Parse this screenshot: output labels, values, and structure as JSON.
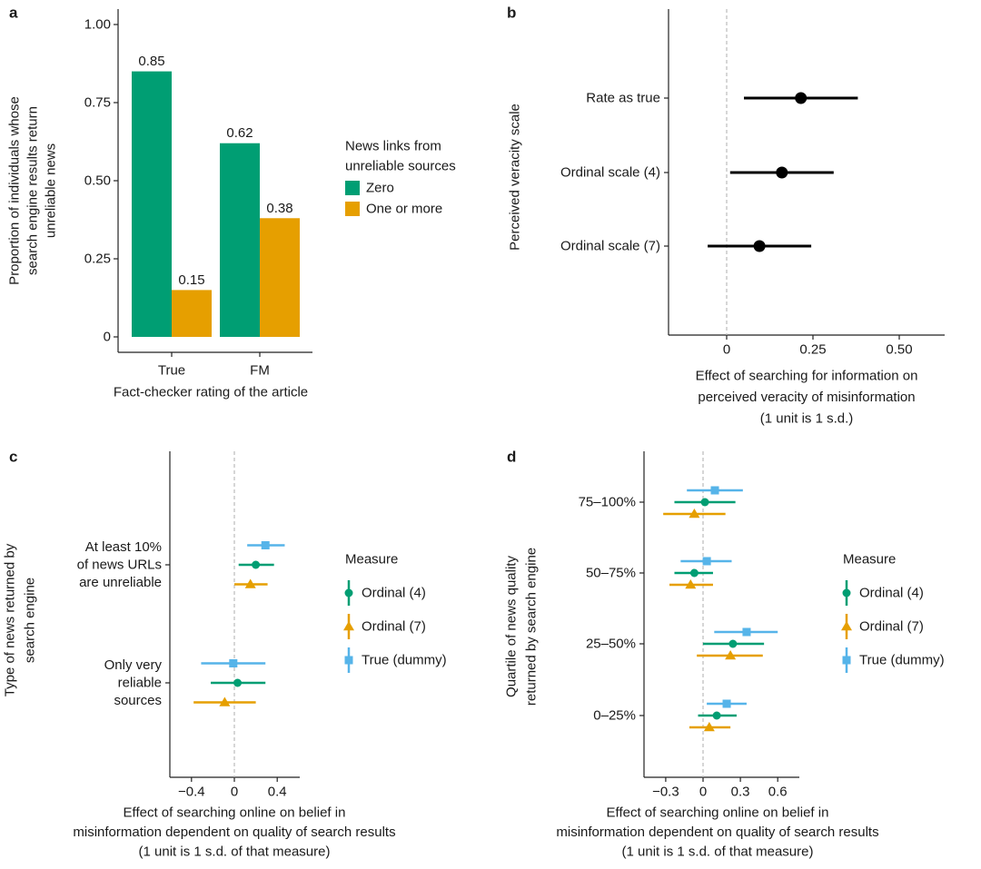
{
  "colors": {
    "green": "#009E73",
    "orange": "#E69F00",
    "blue": "#56B4E9",
    "black": "#000000"
  },
  "chart_data": [
    {
      "panel": "a",
      "type": "bar",
      "categories": [
        "True",
        "FM"
      ],
      "series": [
        {
          "name": "Zero",
          "values": [
            0.85,
            0.62
          ],
          "color": "#009E73"
        },
        {
          "name": "One or more",
          "values": [
            0.15,
            0.38
          ],
          "color": "#E69F00"
        }
      ],
      "data_labels": [
        [
          "0.85",
          "0.62"
        ],
        [
          "0.15",
          "0.38"
        ]
      ],
      "xlabel": "Fact-checker rating of the article",
      "ylabel": [
        "Proportion of individuals whose",
        "search engine results return",
        "unreliable news"
      ],
      "yticks": [
        "0",
        "0.25",
        "0.50",
        "0.75",
        "1.00"
      ],
      "ylim": [
        0,
        1
      ],
      "legend_title": [
        "News links from",
        "unreliable sources"
      ],
      "legend_position": "right",
      "grid": false
    },
    {
      "panel": "b",
      "type": "scatter",
      "subtype": "point-range",
      "categories": [
        "Rate as true",
        "Ordinal scale (4)",
        "Ordinal scale (7)"
      ],
      "estimates": [
        0.215,
        0.16,
        0.095
      ],
      "ci_low": [
        0.05,
        0.01,
        -0.055
      ],
      "ci_high": [
        0.38,
        0.31,
        0.245
      ],
      "xticks": [
        "0",
        "0.25",
        "0.50"
      ],
      "xlim": [
        -0.17,
        0.63
      ],
      "xlabel": [
        "Effect of searching for information on",
        "perceived veracity of misinformation",
        "(1 unit is 1 s.d.)"
      ],
      "ylabel": "Perceived veracity scale",
      "reference_line": 0,
      "grid": false
    },
    {
      "panel": "c",
      "type": "scatter",
      "subtype": "point-range",
      "categories": [
        [
          "At least 10%",
          "of news URLs",
          "are unreliable"
        ],
        [
          "Only very",
          "reliable",
          "sources"
        ]
      ],
      "series": [
        {
          "name": "True (dummy)",
          "marker": "square",
          "color": "#56B4E9",
          "estimates": [
            0.29,
            -0.01
          ],
          "ci_low": [
            0.12,
            -0.31
          ],
          "ci_high": [
            0.47,
            0.29
          ]
        },
        {
          "name": "Ordinal (4)",
          "marker": "circle",
          "color": "#009E73",
          "estimates": [
            0.2,
            0.03
          ],
          "ci_low": [
            0.04,
            -0.22
          ],
          "ci_high": [
            0.37,
            0.29
          ]
        },
        {
          "name": "Ordinal (7)",
          "marker": "triangle",
          "color": "#E69F00",
          "estimates": [
            0.15,
            -0.09
          ],
          "ci_low": [
            0.0,
            -0.38
          ],
          "ci_high": [
            0.31,
            0.2
          ]
        }
      ],
      "legend_order": [
        "Ordinal (4)",
        "Ordinal (7)",
        "True (dummy)"
      ],
      "legend_title": "Measure",
      "legend_position": "right",
      "xticks": [
        "−0.4",
        "0",
        "0.4"
      ],
      "xlim": [
        -0.6,
        0.6
      ],
      "xlabel": [
        "Effect of searching online on belief in",
        "misinformation dependent on quality of search results",
        "(1 unit is 1 s.d. of that measure)"
      ],
      "ylabel": [
        "Type of news returned by",
        "search engine"
      ],
      "reference_line": 0,
      "grid": false
    },
    {
      "panel": "d",
      "type": "scatter",
      "subtype": "point-range",
      "categories": [
        "75–100%",
        "50–75%",
        "25–50%",
        "0–25%"
      ],
      "series": [
        {
          "name": "True (dummy)",
          "marker": "square",
          "color": "#56B4E9",
          "estimates": [
            0.095,
            0.03,
            0.35,
            0.19
          ],
          "ci_low": [
            -0.13,
            -0.18,
            0.09,
            0.03
          ],
          "ci_high": [
            0.32,
            0.23,
            0.6,
            0.35
          ]
        },
        {
          "name": "Ordinal (4)",
          "marker": "circle",
          "color": "#009E73",
          "estimates": [
            0.015,
            -0.07,
            0.24,
            0.11
          ],
          "ci_low": [
            -0.23,
            -0.23,
            0.0,
            -0.04
          ],
          "ci_high": [
            0.26,
            0.08,
            0.49,
            0.27
          ]
        },
        {
          "name": "Ordinal (7)",
          "marker": "triangle",
          "color": "#E69F00",
          "estimates": [
            -0.07,
            -0.1,
            0.22,
            0.05
          ],
          "ci_low": [
            -0.32,
            -0.27,
            -0.05,
            -0.11
          ],
          "ci_high": [
            0.18,
            0.08,
            0.48,
            0.22
          ]
        }
      ],
      "legend_order": [
        "Ordinal (4)",
        "Ordinal (7)",
        "True (dummy)"
      ],
      "legend_title": "Measure",
      "legend_position": "right",
      "xticks": [
        "−0.3",
        "0",
        "0.3",
        "0.6"
      ],
      "xlim": [
        -0.48,
        0.78
      ],
      "xlabel": [
        "Effect of searching online on belief in",
        "misinformation dependent on quality of search results",
        "(1 unit is 1 s.d. of that measure)"
      ],
      "ylabel": [
        "Quartile of news quality",
        "returned by search engine"
      ],
      "reference_line": 0,
      "grid": false
    }
  ],
  "panel_labels": [
    "a",
    "b",
    "c",
    "d"
  ]
}
